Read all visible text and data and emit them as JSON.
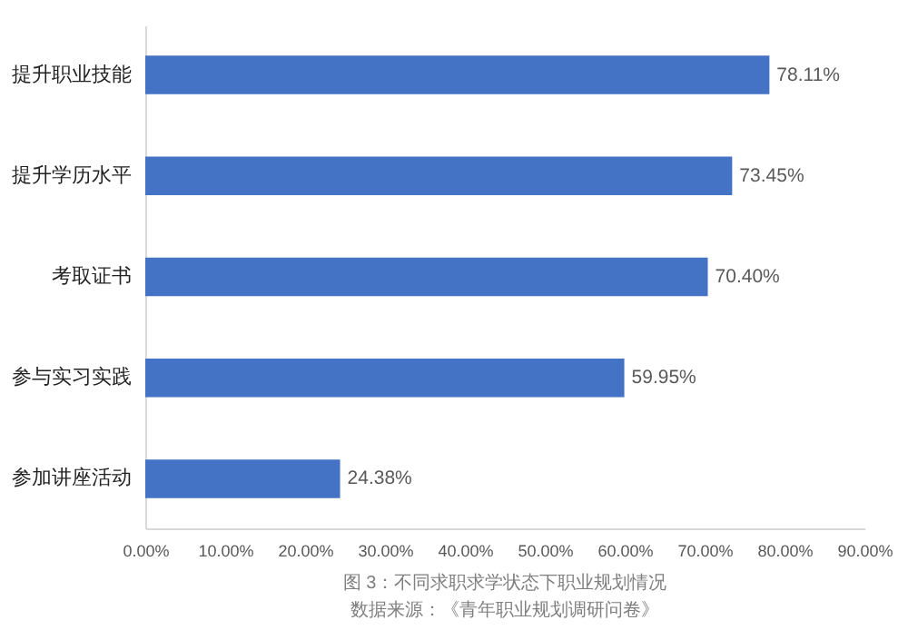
{
  "chart_data": {
    "type": "bar",
    "orientation": "horizontal",
    "categories": [
      "提升职业技能",
      "提升学历水平",
      "考取证书",
      "参与实习实践",
      "参加讲座活动"
    ],
    "values": [
      78.11,
      73.45,
      70.4,
      59.95,
      24.38
    ],
    "value_labels": [
      "78.11%",
      "73.45%",
      "70.40%",
      "59.95%",
      "24.38%"
    ],
    "color": "#4472c4",
    "xlim": [
      0,
      90
    ],
    "xticks": [
      {
        "value": 0,
        "label": "0.00%"
      },
      {
        "value": 10,
        "label": "10.00%"
      },
      {
        "value": 20,
        "label": "20.00%"
      },
      {
        "value": 30,
        "label": "30.00%"
      },
      {
        "value": 40,
        "label": "40.00%"
      },
      {
        "value": 50,
        "label": "50.00%"
      },
      {
        "value": 60,
        "label": "60.00%"
      },
      {
        "value": 70,
        "label": "70.00%"
      },
      {
        "value": 80,
        "label": "80.00%"
      },
      {
        "value": 90,
        "label": "90.00%"
      }
    ],
    "grid": false,
    "annotations": [
      "图 3：不同求职求学状态下职业规划情况",
      "数据来源：《青年职业规划调研问卷》"
    ]
  }
}
